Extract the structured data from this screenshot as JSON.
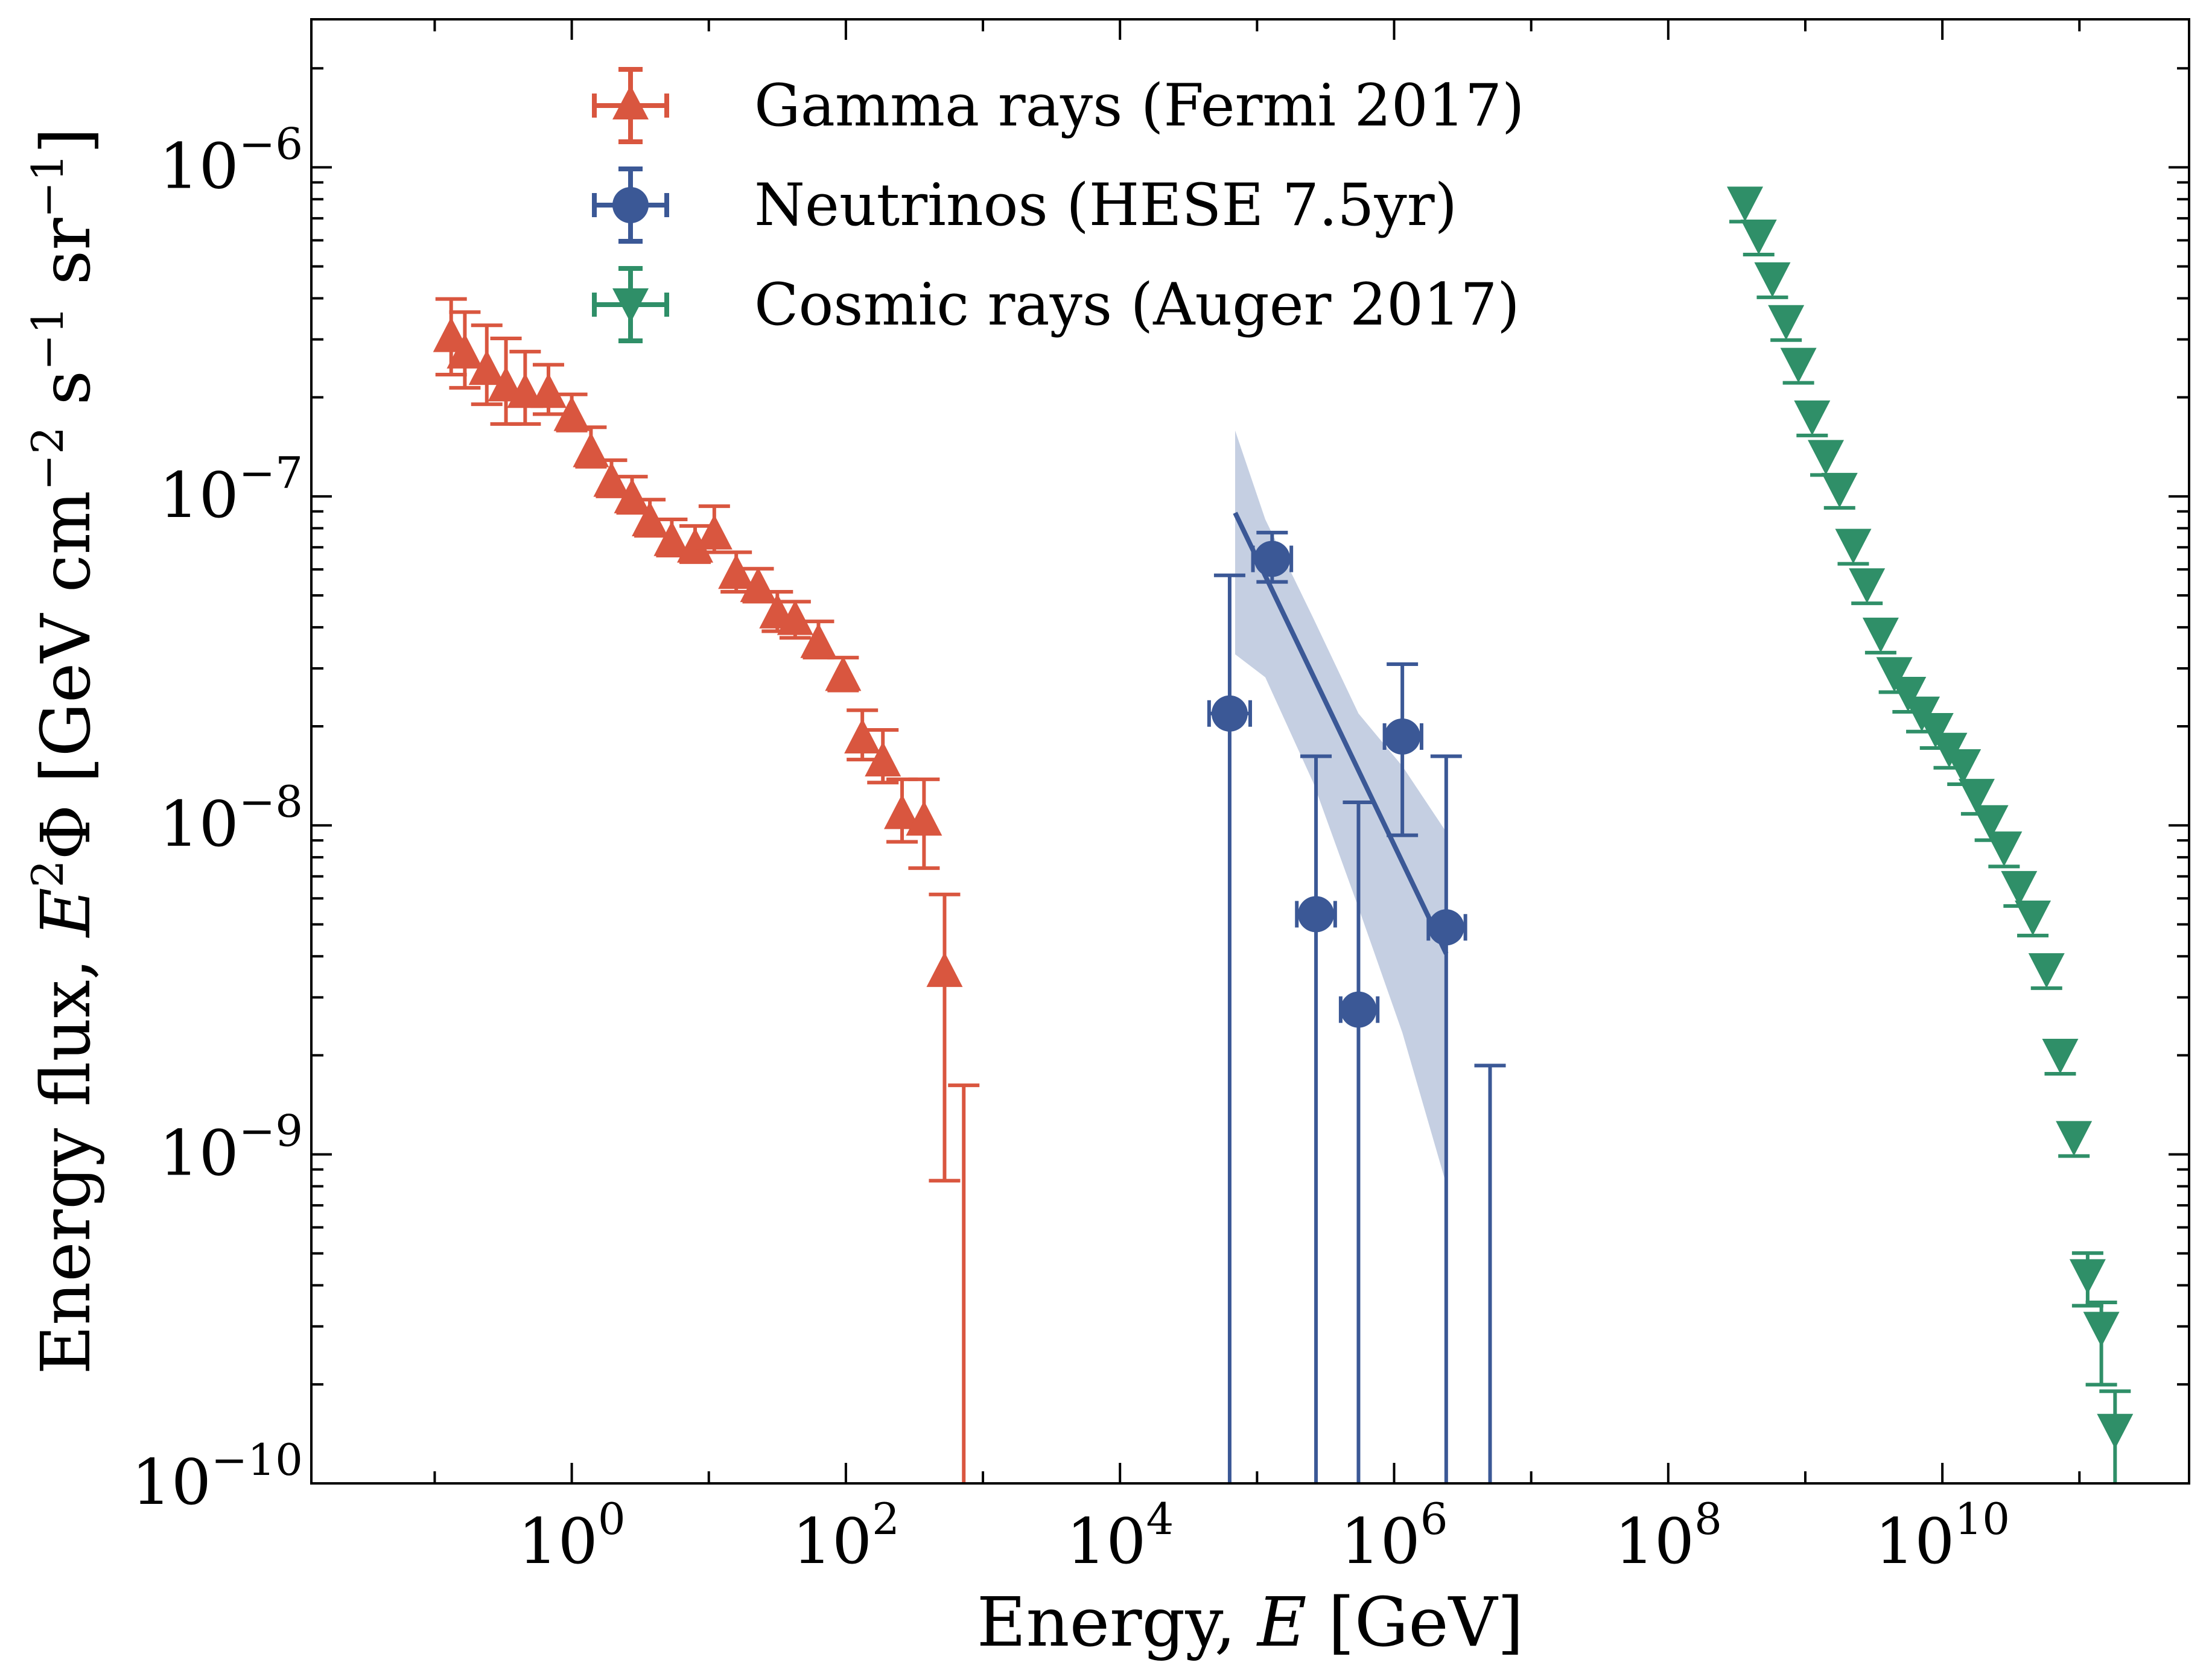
{
  "chart_data": {
    "type": "scatter",
    "title": "",
    "xlabel": "Energy, E [GeV]",
    "xlabel_parts": {
      "pre": "Energy, ",
      "var": "E",
      "post": " [GeV]"
    },
    "ylabel": "Energy flux, E^2Φ [GeV cm^-2 s^-1 sr^-1]",
    "ylabel_parts": {
      "pre": "Energy flux, ",
      "var": "E",
      "exp2": "2",
      "phi": "Φ",
      "bracket_open": " [GeV cm",
      "neg2": "−2",
      "s": " s",
      "neg1a": "−1",
      "sr": " sr",
      "neg1b": "−1",
      "bracket_close": "]"
    },
    "xscale": "log",
    "yscale": "log",
    "xlim_log10": [
      -1.9,
      11.8
    ],
    "ylim_log10": [
      -10,
      -5.55
    ],
    "x_tick_exponents": [
      "0",
      "2",
      "4",
      "6",
      "8",
      "10"
    ],
    "y_tick_exponents": [
      "−10",
      "−9",
      "−8",
      "−7",
      "−6"
    ],
    "tick_base": "10",
    "legend_position": "top-center",
    "series": [
      {
        "name": "Gamma rays (Fermi 2017)",
        "color": "#d9563f",
        "marker": "triangle-up",
        "points": [
          {
            "logE": -0.88,
            "logF": -6.51,
            "err_up": -6.4,
            "err_lo": -6.63
          },
          {
            "logE": -0.78,
            "logF": -6.56,
            "err_up": -6.44,
            "err_lo": -6.67
          },
          {
            "logE": -0.62,
            "logF": -6.61,
            "err_up": -6.48,
            "err_lo": -6.72
          },
          {
            "logE": -0.48,
            "logF": -6.66,
            "err_up": -6.52,
            "err_lo": -6.78
          },
          {
            "logE": -0.34,
            "logF": -6.68,
            "err_up": -6.56,
            "err_lo": -6.78
          },
          {
            "logE": -0.17,
            "logF": -6.68,
            "err_up": -6.6,
            "err_lo": -6.75
          },
          {
            "logE": 0.0,
            "logF": -6.75,
            "err_up": -6.69,
            "err_lo": -6.8
          },
          {
            "logE": 0.14,
            "logF": -6.86,
            "err_up": -6.79,
            "err_lo": -6.91
          },
          {
            "logE": 0.29,
            "logF": -6.95,
            "err_up": -6.89,
            "err_lo": -7.0
          },
          {
            "logE": 0.44,
            "logF": -7.0,
            "err_up": -6.94,
            "err_lo": -7.05
          },
          {
            "logE": 0.57,
            "logF": -7.07,
            "err_up": -7.01,
            "err_lo": -7.12
          },
          {
            "logE": 0.73,
            "logF": -7.13,
            "err_up": -7.07,
            "err_lo": -7.18
          },
          {
            "logE": 0.9,
            "logF": -7.15,
            "err_up": -7.09,
            "err_lo": -7.2
          },
          {
            "logE": 1.04,
            "logF": -7.11,
            "err_up": -7.03,
            "err_lo": -7.17
          },
          {
            "logE": 1.2,
            "logF": -7.23,
            "err_up": -7.17,
            "err_lo": -7.29
          },
          {
            "logE": 1.36,
            "logF": -7.27,
            "err_up": -7.22,
            "err_lo": -7.32
          },
          {
            "logE": 1.5,
            "logF": -7.35,
            "err_up": -7.29,
            "err_lo": -7.41
          },
          {
            "logE": 1.63,
            "logF": -7.37,
            "err_up": -7.32,
            "err_lo": -7.43
          },
          {
            "logE": 1.8,
            "logF": -7.44,
            "err_up": -7.38,
            "err_lo": -7.49
          },
          {
            "logE": 1.98,
            "logF": -7.54,
            "err_up": -7.49,
            "err_lo": -7.59
          },
          {
            "logE": 2.12,
            "logF": -7.73,
            "err_up": -7.65,
            "err_lo": -7.8
          },
          {
            "logE": 2.27,
            "logF": -7.8,
            "err_up": -7.71,
            "err_lo": -7.87
          },
          {
            "logE": 2.41,
            "logF": -7.96,
            "err_up": -7.86,
            "err_lo": -8.05
          },
          {
            "logE": 2.57,
            "logF": -7.98,
            "err_up": -7.86,
            "err_lo": -8.13
          },
          {
            "logE": 2.72,
            "logF": -8.44,
            "err_up": -8.21,
            "err_lo": -9.08
          }
        ],
        "upper_limits": [
          {
            "logE": 2.86,
            "logF": -8.79,
            "err_lo": -10.0
          }
        ]
      },
      {
        "name": "Neutrinos (HESE 7.5yr)",
        "color": "#3b5896",
        "marker": "circle",
        "points": [
          {
            "logE": 4.8,
            "logF": -7.66,
            "err_up": -7.24,
            "err_lo": -10.0,
            "x_lo": 4.65,
            "x_hi": 4.95
          },
          {
            "logE": 5.11,
            "logF": -7.19,
            "err_up": -7.11,
            "err_lo": -7.26,
            "x_lo": 4.97,
            "x_hi": 5.25
          },
          {
            "logE": 5.43,
            "logF": -8.27,
            "err_up": -7.79,
            "err_lo": -10.0,
            "x_lo": 5.29,
            "x_hi": 5.57
          },
          {
            "logE": 5.74,
            "logF": -8.56,
            "err_up": -7.93,
            "err_lo": -10.0,
            "x_lo": 5.61,
            "x_hi": 5.88
          },
          {
            "logE": 6.06,
            "logF": -7.73,
            "err_up": -7.51,
            "err_lo": -8.03,
            "x_lo": 5.93,
            "x_hi": 6.2
          },
          {
            "logE": 6.38,
            "logF": -8.31,
            "err_up": -7.79,
            "err_lo": -10.0,
            "x_lo": 6.25,
            "x_hi": 6.52
          }
        ],
        "upper_limits": [
          {
            "logE": 6.7,
            "logF": -8.73,
            "err_lo": -10.0
          }
        ],
        "fit_line": {
          "logE": [
            4.84,
            6.38
          ],
          "logF": [
            -7.05,
            -8.39
          ]
        },
        "fit_band": {
          "logE": [
            4.84,
            5.06,
            5.41,
            5.74,
            6.06,
            6.38
          ],
          "upper": [
            -6.8,
            -7.07,
            -7.37,
            -7.66,
            -7.82,
            -8.02
          ],
          "lower": [
            -7.48,
            -7.55,
            -7.87,
            -8.25,
            -8.63,
            -9.09
          ]
        },
        "band_color": "#c2cce0"
      },
      {
        "name": "Cosmic rays (Auger 2017)",
        "color": "#2f8f68",
        "marker": "triangle-down",
        "points": [
          {
            "logE": 8.56,
            "logF": -6.11
          },
          {
            "logE": 8.66,
            "logF": -6.21
          },
          {
            "logE": 8.76,
            "logF": -6.34
          },
          {
            "logE": 8.86,
            "logF": -6.47
          },
          {
            "logE": 8.95,
            "logF": -6.6
          },
          {
            "logE": 9.05,
            "logF": -6.76
          },
          {
            "logE": 9.15,
            "logF": -6.88
          },
          {
            "logE": 9.25,
            "logF": -6.98
          },
          {
            "logE": 9.35,
            "logF": -7.15
          },
          {
            "logE": 9.45,
            "logF": -7.27
          },
          {
            "logE": 9.55,
            "logF": -7.42
          },
          {
            "logE": 9.65,
            "logF": -7.54
          },
          {
            "logE": 9.75,
            "logF": -7.6
          },
          {
            "logE": 9.85,
            "logF": -7.66
          },
          {
            "logE": 9.95,
            "logF": -7.71
          },
          {
            "logE": 10.05,
            "logF": -7.77
          },
          {
            "logE": 10.15,
            "logF": -7.82
          },
          {
            "logE": 10.25,
            "logF": -7.91
          },
          {
            "logE": 10.35,
            "logF": -7.99
          },
          {
            "logE": 10.45,
            "logF": -8.07
          },
          {
            "logE": 10.56,
            "logF": -8.19
          },
          {
            "logE": 10.66,
            "logF": -8.28
          },
          {
            "logE": 10.76,
            "logF": -8.44
          },
          {
            "logE": 10.86,
            "logF": -8.7
          },
          {
            "logE": 10.96,
            "logF": -8.95
          },
          {
            "logE": 11.06,
            "logF": -9.37,
            "err_up": -9.3,
            "err_lo": -9.46
          },
          {
            "logE": 11.16,
            "logF": -9.53,
            "err_up": -9.45,
            "err_lo": -9.7
          },
          {
            "logE": 11.26,
            "logF": -9.84,
            "err_up": -9.72,
            "err_lo": -10.0
          }
        ]
      }
    ]
  }
}
